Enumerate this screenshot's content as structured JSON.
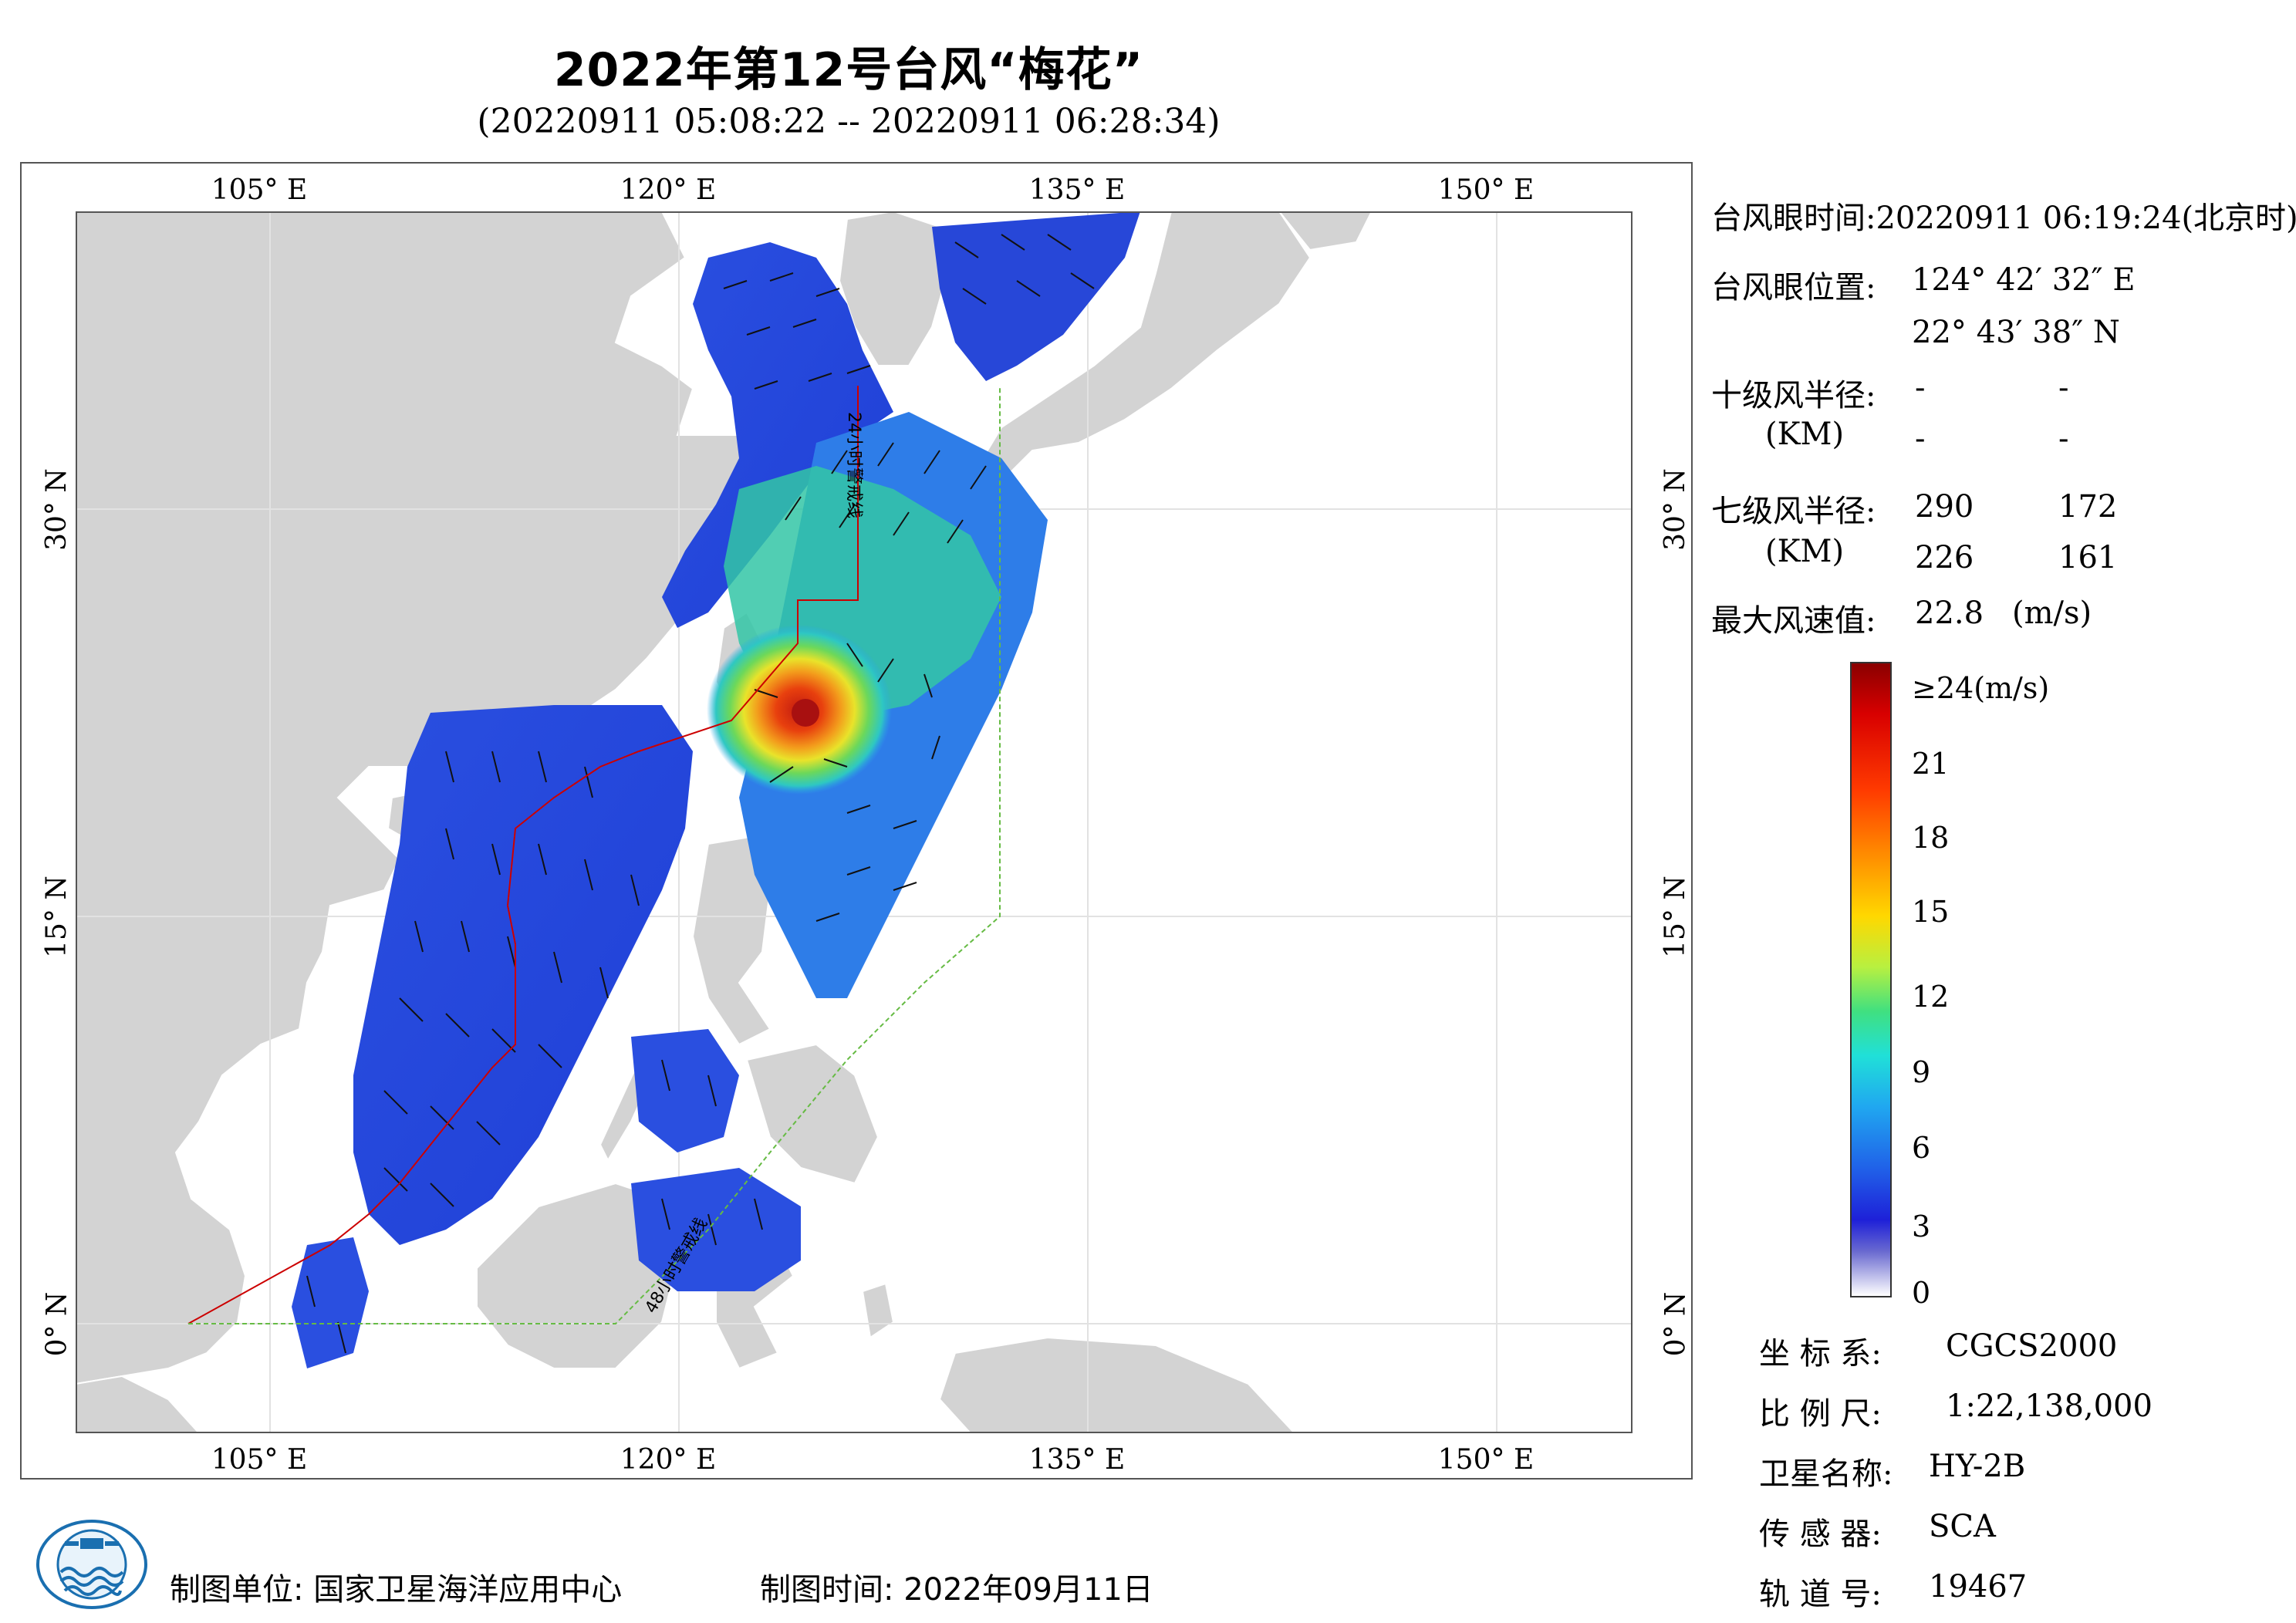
{
  "header": {
    "title": "2022年第12号台风“梅花”",
    "subtitle": "(20220911 05:08:22 -- 20220911 06:28:34)"
  },
  "map": {
    "lon_ticks_top": [
      "105° E",
      "120° E",
      "135° E",
      "150° E"
    ],
    "lon_ticks_bottom": [
      "105° E",
      "120° E",
      "135° E",
      "150° E"
    ],
    "lat_ticks_left": [
      "30° N",
      "15° N",
      "0° N"
    ],
    "lat_ticks_right": [
      "30° N",
      "15° N",
      "0° N"
    ],
    "warning_line_24h_label": "24小时警戒线",
    "warning_line_48h_label": "48小时警戒线",
    "colors": {
      "land": "#d3d3d3",
      "sea": "#ffffff",
      "warning_24h": "#cc0000",
      "warning_48h": "#66bb44"
    }
  },
  "info": {
    "eye_time_label": "台风眼时间:",
    "eye_time_value": "20220911 06:19:24(北京时)",
    "eye_pos_label": "台风眼位置:",
    "eye_pos_lon": "124° 42′ 32″ E",
    "eye_pos_lat": "22° 43′ 38″ N",
    "r10_label": "十级风半径:",
    "r10_unit": "(KM)",
    "r10_values": [
      "-",
      "-",
      "-",
      "-"
    ],
    "r7_label": "七级风半径:",
    "r7_unit": "(KM)",
    "r7_values": [
      "290",
      "172",
      "226",
      "161"
    ],
    "max_wind_label": "最大风速值:",
    "max_wind_value": "22.8",
    "max_wind_unit": "(m/s)"
  },
  "colorbar": {
    "top_label": "≥24(m/s)",
    "ticks": [
      "21",
      "18",
      "15",
      "12",
      "9",
      "6",
      "3",
      "0"
    ]
  },
  "meta": {
    "crs_label": "坐 标 系:",
    "crs_value": "CGCS2000",
    "scale_label": "比 例 尺:",
    "scale_value": "1:22,138,000",
    "satellite_label": "卫星名称:",
    "satellite_value": "HY-2B",
    "sensor_label": "传 感 器:",
    "sensor_value": "SCA",
    "orbit_label": "轨 道 号:",
    "orbit_value": "19467"
  },
  "footer": {
    "producer": "制图单位: 国家卫星海洋应用中心",
    "date": "制图时间:  2022年09月11日"
  }
}
